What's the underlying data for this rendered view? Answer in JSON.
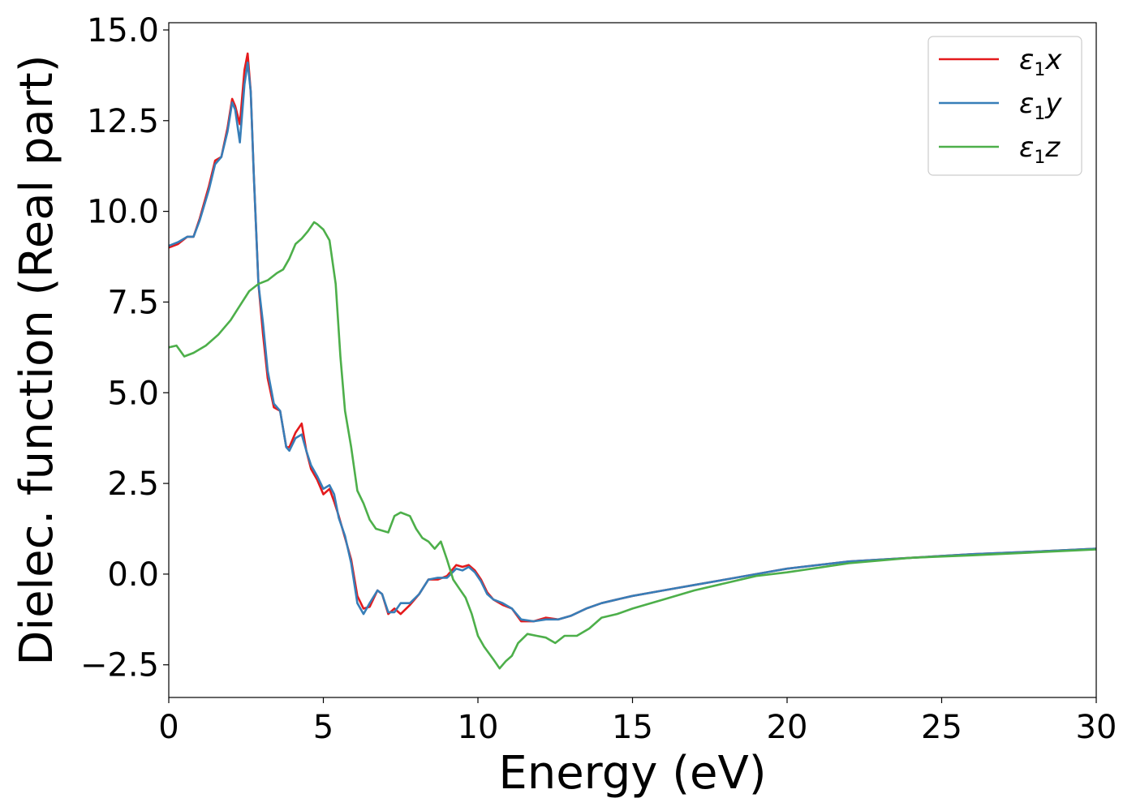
{
  "chart_data": {
    "type": "line",
    "xlabel": "Energy (eV)",
    "ylabel": "Dielec. function (Real part)",
    "xlim": [
      0,
      30
    ],
    "ylim": [
      -3.4,
      15.2
    ],
    "xticks": [
      0,
      5,
      10,
      15,
      20,
      25,
      30
    ],
    "xtick_labels": [
      "0",
      "5",
      "10",
      "15",
      "20",
      "25",
      "30"
    ],
    "yticks": [
      -2.5,
      0.0,
      2.5,
      5.0,
      7.5,
      10.0,
      12.5,
      15.0
    ],
    "ytick_labels": [
      "−2.5",
      "0.0",
      "2.5",
      "5.0",
      "7.5",
      "10.0",
      "12.5",
      "15.0"
    ],
    "grid": false,
    "legend_position": "top-right",
    "series": [
      {
        "name": "ε1x",
        "legend_main": "ε",
        "legend_sub": "1",
        "legend_var": "x",
        "color": "#e41a1c",
        "x": [
          0,
          0.3,
          0.6,
          0.8,
          1.0,
          1.3,
          1.5,
          1.7,
          1.9,
          2.05,
          2.15,
          2.3,
          2.45,
          2.55,
          2.65,
          2.75,
          2.9,
          3.05,
          3.2,
          3.4,
          3.6,
          3.8,
          3.9,
          4.1,
          4.3,
          4.45,
          4.6,
          4.8,
          5.0,
          5.2,
          5.35,
          5.5,
          5.7,
          5.9,
          6.1,
          6.3,
          6.5,
          6.75,
          6.9,
          7.1,
          7.3,
          7.5,
          7.8,
          8.1,
          8.4,
          8.7,
          9.0,
          9.3,
          9.5,
          9.7,
          9.9,
          10.1,
          10.3,
          10.5,
          10.8,
          11.1,
          11.4,
          11.8,
          12.2,
          12.6,
          13.0,
          13.5,
          14.0,
          14.5,
          15.0,
          16.0,
          17.0,
          18.0,
          19.0,
          20.0,
          22.0,
          24.0,
          26.0,
          28.0,
          30.0
        ],
        "y": [
          9.0,
          9.1,
          9.3,
          9.3,
          9.8,
          10.7,
          11.4,
          11.5,
          12.3,
          13.1,
          12.9,
          12.4,
          13.9,
          14.35,
          13.3,
          11.0,
          8.0,
          6.6,
          5.4,
          4.6,
          4.5,
          3.5,
          3.5,
          3.9,
          4.15,
          3.4,
          2.9,
          2.6,
          2.2,
          2.35,
          2.0,
          1.6,
          1.0,
          0.4,
          -0.6,
          -0.95,
          -0.9,
          -0.45,
          -0.55,
          -1.1,
          -0.95,
          -1.1,
          -0.85,
          -0.55,
          -0.15,
          -0.15,
          -0.05,
          0.25,
          0.2,
          0.25,
          0.1,
          -0.15,
          -0.5,
          -0.7,
          -0.85,
          -0.95,
          -1.3,
          -1.3,
          -1.2,
          -1.25,
          -1.15,
          -0.95,
          -0.8,
          -0.7,
          -0.6,
          -0.45,
          -0.3,
          -0.15,
          0.0,
          0.15,
          0.35,
          0.45,
          0.55,
          0.62,
          0.7
        ]
      },
      {
        "name": "ε1y",
        "legend_main": "ε",
        "legend_sub": "1",
        "legend_var": "y",
        "color": "#377eb8",
        "x": [
          0,
          0.3,
          0.6,
          0.8,
          1.0,
          1.3,
          1.5,
          1.7,
          1.9,
          2.05,
          2.15,
          2.3,
          2.45,
          2.55,
          2.65,
          2.75,
          2.9,
          3.05,
          3.2,
          3.4,
          3.6,
          3.8,
          3.9,
          4.1,
          4.3,
          4.45,
          4.6,
          4.8,
          5.0,
          5.2,
          5.35,
          5.5,
          5.7,
          5.9,
          6.1,
          6.3,
          6.5,
          6.75,
          6.9,
          7.1,
          7.3,
          7.5,
          7.8,
          8.1,
          8.4,
          8.7,
          9.0,
          9.3,
          9.5,
          9.7,
          9.9,
          10.1,
          10.3,
          10.5,
          10.8,
          11.1,
          11.4,
          11.8,
          12.2,
          12.6,
          13.0,
          13.5,
          14.0,
          14.5,
          15.0,
          16.0,
          17.0,
          18.0,
          19.0,
          20.0,
          22.0,
          24.0,
          26.0,
          28.0,
          30.0
        ],
        "y": [
          9.05,
          9.15,
          9.3,
          9.3,
          9.75,
          10.6,
          11.3,
          11.5,
          12.2,
          13.0,
          12.8,
          11.9,
          13.5,
          14.1,
          13.3,
          11.0,
          8.0,
          6.9,
          5.6,
          4.7,
          4.5,
          3.5,
          3.4,
          3.75,
          3.85,
          3.4,
          3.0,
          2.7,
          2.35,
          2.45,
          2.2,
          1.55,
          1.05,
          0.3,
          -0.8,
          -1.1,
          -0.8,
          -0.45,
          -0.55,
          -1.05,
          -1.05,
          -0.8,
          -0.8,
          -0.55,
          -0.15,
          -0.1,
          -0.1,
          0.15,
          0.1,
          0.2,
          0.05,
          -0.2,
          -0.55,
          -0.7,
          -0.8,
          -0.95,
          -1.25,
          -1.3,
          -1.25,
          -1.25,
          -1.15,
          -0.95,
          -0.8,
          -0.7,
          -0.6,
          -0.45,
          -0.3,
          -0.15,
          0.0,
          0.15,
          0.35,
          0.45,
          0.55,
          0.62,
          0.7
        ]
      },
      {
        "name": "ε1z",
        "legend_main": "ε",
        "legend_sub": "1",
        "legend_var": "z",
        "color": "#4daf4a",
        "x": [
          0,
          0.25,
          0.5,
          0.8,
          1.2,
          1.6,
          2.0,
          2.3,
          2.6,
          2.9,
          3.2,
          3.5,
          3.7,
          3.9,
          4.1,
          4.3,
          4.5,
          4.7,
          4.8,
          5.0,
          5.2,
          5.4,
          5.55,
          5.7,
          5.9,
          6.1,
          6.3,
          6.5,
          6.7,
          6.9,
          7.1,
          7.3,
          7.5,
          7.8,
          8.0,
          8.2,
          8.4,
          8.6,
          8.8,
          9.0,
          9.2,
          9.4,
          9.6,
          9.8,
          10.0,
          10.2,
          10.5,
          10.7,
          10.9,
          11.1,
          11.3,
          11.6,
          11.9,
          12.2,
          12.5,
          12.8,
          13.2,
          13.6,
          14.0,
          14.5,
          15.0,
          16.0,
          17.0,
          18.0,
          19.0,
          20.0,
          22.0,
          24.0,
          26.0,
          28.0,
          30.0
        ],
        "y": [
          6.25,
          6.3,
          6.0,
          6.1,
          6.3,
          6.6,
          7.0,
          7.4,
          7.8,
          8.0,
          8.1,
          8.3,
          8.4,
          8.7,
          9.1,
          9.25,
          9.45,
          9.7,
          9.65,
          9.5,
          9.2,
          8.0,
          6.0,
          4.5,
          3.5,
          2.3,
          1.95,
          1.5,
          1.25,
          1.2,
          1.15,
          1.6,
          1.7,
          1.6,
          1.25,
          1.0,
          0.9,
          0.7,
          0.9,
          0.4,
          -0.15,
          -0.4,
          -0.65,
          -1.1,
          -1.7,
          -2.0,
          -2.35,
          -2.6,
          -2.4,
          -2.25,
          -1.9,
          -1.65,
          -1.7,
          -1.75,
          -1.9,
          -1.7,
          -1.7,
          -1.5,
          -1.2,
          -1.1,
          -0.95,
          -0.7,
          -0.45,
          -0.25,
          -0.05,
          0.05,
          0.3,
          0.45,
          0.52,
          0.6,
          0.68
        ]
      }
    ]
  }
}
